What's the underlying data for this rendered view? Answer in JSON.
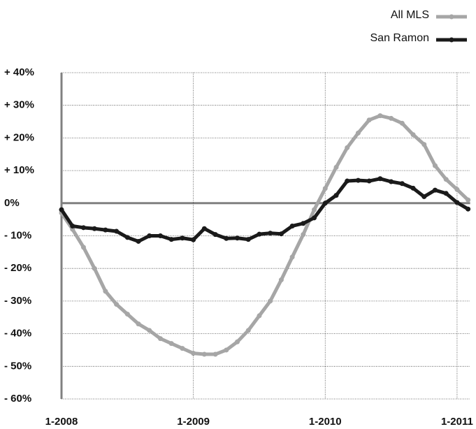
{
  "chart_data": {
    "type": "line",
    "categories": [
      "1-2008",
      null,
      null,
      null,
      null,
      null,
      null,
      null,
      null,
      null,
      null,
      null,
      "1-2009",
      null,
      null,
      null,
      null,
      null,
      null,
      null,
      null,
      null,
      null,
      null,
      "1-2010",
      null,
      null,
      null,
      null,
      null,
      null,
      null,
      null,
      null,
      null,
      null,
      "1-2011",
      null
    ],
    "series": [
      {
        "name": "All MLS",
        "color": "#a6a6a6",
        "values": [
          -3,
          -8,
          -13.5,
          -20,
          -27,
          -31,
          -34,
          -37,
          -39,
          -41.5,
          -43,
          -44.5,
          -46,
          -46.3,
          -46.3,
          -45,
          -42.5,
          -39,
          -34.5,
          -30,
          -23.5,
          -16.5,
          -9.6,
          -2,
          4.5,
          11,
          17,
          21.5,
          25.5,
          26.8,
          26,
          24.5,
          21,
          18,
          11.5,
          7.3,
          4.2,
          1
        ]
      },
      {
        "name": "San Ramon",
        "color": "#1a1a1a",
        "values": [
          -2,
          -7,
          -7.5,
          -7.8,
          -8.2,
          -8.6,
          -10.5,
          -11.7,
          -10,
          -10,
          -11.1,
          -10.7,
          -11.2,
          -7.8,
          -9.6,
          -10.8,
          -10.7,
          -11.1,
          -9.5,
          -9.2,
          -9.4,
          -7,
          -6.2,
          -4.5,
          0,
          2.4,
          6.8,
          7,
          6.8,
          7.5,
          6.6,
          6,
          4.6,
          2,
          4,
          3,
          0.2,
          -1.8
        ]
      }
    ],
    "ylim": [
      -60,
      40
    ],
    "yticks": [
      {
        "value": -60,
        "label": "- 60%"
      },
      {
        "value": -50,
        "label": "- 50%"
      },
      {
        "value": -40,
        "label": "- 40%"
      },
      {
        "value": -30,
        "label": "- 30%"
      },
      {
        "value": -20,
        "label": "- 20%"
      },
      {
        "value": -10,
        "label": "- 10%"
      },
      {
        "value": 0,
        "label": "0%"
      },
      {
        "value": 10,
        "label": "+ 10%"
      },
      {
        "value": 20,
        "label": "+ 20%"
      },
      {
        "value": 30,
        "label": "+ 30%"
      },
      {
        "value": 40,
        "label": "+ 40%"
      }
    ],
    "grid": true,
    "legend": "top-right"
  }
}
